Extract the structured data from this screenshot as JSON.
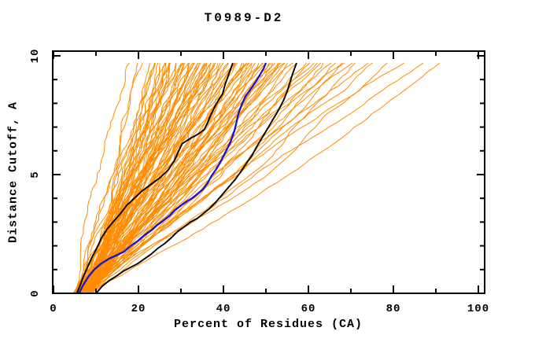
{
  "title": "T0989-D2",
  "chart_data": {
    "type": "line",
    "title": "T0989-D2",
    "xlabel": "Percent of Residues (CA)",
    "ylabel": "Distance Cutoff, A",
    "xlim": [
      0,
      100
    ],
    "ylim": [
      0,
      10
    ],
    "x_major_ticks": [
      0,
      20,
      40,
      60,
      80,
      100
    ],
    "x_minor_ticks": [
      10,
      30,
      50,
      70,
      90
    ],
    "y_major_ticks": [
      0,
      5,
      10
    ],
    "y_minor_ticks": [
      1,
      2,
      3,
      4,
      6,
      7,
      8,
      9
    ],
    "grid": false,
    "legend": "none",
    "curve_top_y": 9.7,
    "colors": {
      "ensemble_orange": "#ff8c00",
      "highlight_black": "#000000",
      "reference_blue": "#1414d2",
      "axis": "#000000",
      "background": "#ffffff"
    },
    "series": [
      {
        "name": "model-curve-black-a",
        "color": "#000000",
        "width": 1.9,
        "points": [
          [
            5.5,
            0
          ],
          [
            6.2,
            0.3
          ],
          [
            7.0,
            0.7
          ],
          [
            8.0,
            1.1
          ],
          [
            9.0,
            1.5
          ],
          [
            10.2,
            1.9
          ],
          [
            11.2,
            2.3
          ],
          [
            12.6,
            2.7
          ],
          [
            14.0,
            3.0
          ],
          [
            15.5,
            3.3
          ],
          [
            17.2,
            3.7
          ],
          [
            19.0,
            4.0
          ],
          [
            20.8,
            4.3
          ],
          [
            23.0,
            4.6
          ],
          [
            25.3,
            4.9
          ],
          [
            27.0,
            5.2
          ],
          [
            28.5,
            5.6
          ],
          [
            29.5,
            6.0
          ],
          [
            30.3,
            6.3
          ],
          [
            32.0,
            6.5
          ],
          [
            34.0,
            6.7
          ],
          [
            35.5,
            6.9
          ],
          [
            36.3,
            7.2
          ],
          [
            37.0,
            7.5
          ],
          [
            37.8,
            7.8
          ],
          [
            38.7,
            8.1
          ],
          [
            39.8,
            8.4
          ],
          [
            40.4,
            8.8
          ],
          [
            41.2,
            9.2
          ],
          [
            41.7,
            9.45
          ],
          [
            42.2,
            9.7
          ]
        ]
      },
      {
        "name": "model-curve-black-b",
        "color": "#000000",
        "width": 1.9,
        "points": [
          [
            10.0,
            0
          ],
          [
            11.5,
            0.3
          ],
          [
            13.2,
            0.55
          ],
          [
            15.0,
            0.75
          ],
          [
            16.6,
            0.95
          ],
          [
            18.2,
            1.1
          ],
          [
            19.8,
            1.25
          ],
          [
            21.4,
            1.45
          ],
          [
            23.0,
            1.65
          ],
          [
            24.6,
            1.9
          ],
          [
            26.2,
            2.1
          ],
          [
            27.8,
            2.35
          ],
          [
            29.2,
            2.6
          ],
          [
            30.8,
            2.8
          ],
          [
            32.2,
            3.0
          ],
          [
            33.8,
            3.15
          ],
          [
            35.2,
            3.35
          ],
          [
            36.6,
            3.55
          ],
          [
            38.0,
            3.8
          ],
          [
            39.2,
            4.05
          ],
          [
            40.4,
            4.3
          ],
          [
            41.6,
            4.55
          ],
          [
            42.8,
            4.8
          ],
          [
            43.8,
            5.05
          ],
          [
            44.8,
            5.3
          ],
          [
            45.7,
            5.55
          ],
          [
            46.7,
            5.8
          ],
          [
            47.6,
            6.1
          ],
          [
            48.6,
            6.4
          ],
          [
            49.6,
            6.7
          ],
          [
            50.6,
            7.0
          ],
          [
            51.6,
            7.3
          ],
          [
            52.6,
            7.6
          ],
          [
            53.5,
            7.9
          ],
          [
            54.2,
            8.15
          ],
          [
            55.0,
            8.5
          ],
          [
            55.6,
            8.85
          ],
          [
            56.2,
            9.2
          ],
          [
            56.7,
            9.45
          ],
          [
            57.2,
            9.7
          ]
        ]
      },
      {
        "name": "reference-curve-blue",
        "color": "#1414d2",
        "width": 2.3,
        "points": [
          [
            6.0,
            0
          ],
          [
            7.0,
            0.35
          ],
          [
            8.2,
            0.7
          ],
          [
            9.6,
            1.0
          ],
          [
            11.2,
            1.25
          ],
          [
            13.0,
            1.45
          ],
          [
            14.8,
            1.6
          ],
          [
            16.6,
            1.75
          ],
          [
            18.2,
            2.0
          ],
          [
            19.8,
            2.2
          ],
          [
            21.4,
            2.45
          ],
          [
            23.0,
            2.65
          ],
          [
            24.6,
            2.9
          ],
          [
            25.8,
            3.05
          ],
          [
            27.2,
            3.25
          ],
          [
            28.6,
            3.5
          ],
          [
            30.0,
            3.7
          ],
          [
            31.2,
            3.85
          ],
          [
            32.6,
            4.0
          ],
          [
            34.0,
            4.2
          ],
          [
            35.3,
            4.4
          ],
          [
            36.3,
            4.65
          ],
          [
            37.2,
            4.95
          ],
          [
            38.2,
            5.2
          ],
          [
            39.2,
            5.5
          ],
          [
            40.2,
            5.85
          ],
          [
            40.9,
            6.1
          ],
          [
            41.5,
            6.3
          ],
          [
            42.0,
            6.55
          ],
          [
            42.6,
            6.85
          ],
          [
            43.0,
            7.15
          ],
          [
            43.5,
            7.55
          ],
          [
            44.3,
            7.95
          ],
          [
            45.2,
            8.3
          ],
          [
            46.4,
            8.6
          ],
          [
            47.6,
            8.9
          ],
          [
            48.6,
            9.2
          ],
          [
            49.4,
            9.45
          ],
          [
            50.0,
            9.7
          ]
        ]
      }
    ],
    "ensemble": {
      "description": "orange model curves from y=0 to y=9.7; start_x at y=0, end_x at y=9.7, mid = fraction of span covered at y=4.85",
      "count": 100,
      "color": "#ff8c00",
      "width": 1,
      "start_x": [
        5.2,
        6.0,
        6.8,
        7.6,
        8.4,
        5.5,
        6.3,
        7.1,
        7.9,
        8.7,
        5.8,
        6.6,
        7.4,
        8.2,
        9.0,
        5.0,
        6.1,
        7.2,
        8.0,
        8.8,
        5.2,
        6.0,
        6.8,
        7.6,
        8.4,
        5.5,
        6.3,
        7.1,
        7.9,
        8.7,
        5.8,
        6.6,
        7.4,
        8.2,
        9.0,
        5.0,
        6.1,
        7.2,
        8.0,
        8.8,
        5.2,
        6.0,
        6.8,
        7.6,
        8.4,
        5.5,
        6.3,
        7.1,
        7.9,
        8.7,
        5.8,
        6.6,
        7.4,
        8.2,
        9.0,
        5.0,
        6.1,
        7.2,
        8.0,
        8.8,
        5.2,
        6.0,
        6.8,
        7.6,
        8.4,
        5.5,
        6.3,
        7.1,
        7.9,
        8.7,
        5.8,
        6.6,
        7.4,
        8.2,
        9.0,
        5.0,
        6.1,
        7.2,
        8.0,
        8.8,
        5.2,
        6.0,
        6.8,
        7.6,
        8.4,
        5.5,
        6.3,
        7.1,
        7.9,
        8.7,
        5.8,
        6.6,
        7.4,
        8.2,
        9.0,
        5.0,
        6.1,
        7.2,
        8.0,
        8.8
      ],
      "mid": [
        0.42,
        0.55,
        0.48,
        0.6,
        0.44,
        0.52,
        0.58,
        0.46,
        0.5,
        0.56,
        0.42,
        0.55,
        0.48,
        0.6,
        0.44,
        0.52,
        0.58,
        0.46,
        0.5,
        0.56,
        0.42,
        0.55,
        0.48,
        0.6,
        0.44,
        0.52,
        0.58,
        0.46,
        0.5,
        0.56,
        0.42,
        0.55,
        0.48,
        0.6,
        0.44,
        0.52,
        0.58,
        0.46,
        0.5,
        0.56,
        0.42,
        0.55,
        0.48,
        0.6,
        0.44,
        0.52,
        0.58,
        0.46,
        0.5,
        0.56,
        0.42,
        0.55,
        0.48,
        0.6,
        0.44,
        0.52,
        0.58,
        0.46,
        0.5,
        0.56,
        0.42,
        0.55,
        0.48,
        0.6,
        0.44,
        0.52,
        0.58,
        0.46,
        0.5,
        0.56,
        0.42,
        0.55,
        0.48,
        0.6,
        0.44,
        0.52,
        0.58,
        0.46,
        0.5,
        0.56,
        0.42,
        0.55,
        0.48,
        0.6,
        0.44,
        0.52,
        0.58,
        0.46,
        0.5,
        0.56,
        0.42,
        0.55,
        0.48,
        0.6,
        0.44,
        0.52,
        0.58,
        0.46,
        0.5,
        0.56
      ],
      "end_x": [
        17.5,
        19,
        20.5,
        22,
        23,
        23.5,
        24,
        24.5,
        25,
        25.5,
        26,
        26.5,
        27,
        27.5,
        28,
        28,
        28.5,
        29,
        29.5,
        30,
        30,
        30.5,
        31,
        31,
        31.5,
        32,
        32,
        32.5,
        33,
        33,
        33.5,
        34,
        34,
        34.5,
        35,
        35,
        35.5,
        36,
        36,
        36.5,
        37,
        37,
        37.5,
        38,
        38,
        38.5,
        39,
        39.5,
        40,
        40,
        40.5,
        41,
        41.5,
        42,
        42.5,
        43,
        43.5,
        44,
        44.5,
        45,
        45.5,
        46,
        46.5,
        47,
        47.5,
        48,
        48.5,
        49,
        49.5,
        50,
        50.5,
        51,
        51.5,
        52,
        53,
        53.5,
        54,
        55,
        55.5,
        56,
        57,
        58,
        59,
        60,
        61,
        62,
        63,
        64,
        65,
        66,
        67.5,
        69,
        70.5,
        72,
        74,
        76,
        79,
        82,
        86,
        90
      ]
    }
  }
}
